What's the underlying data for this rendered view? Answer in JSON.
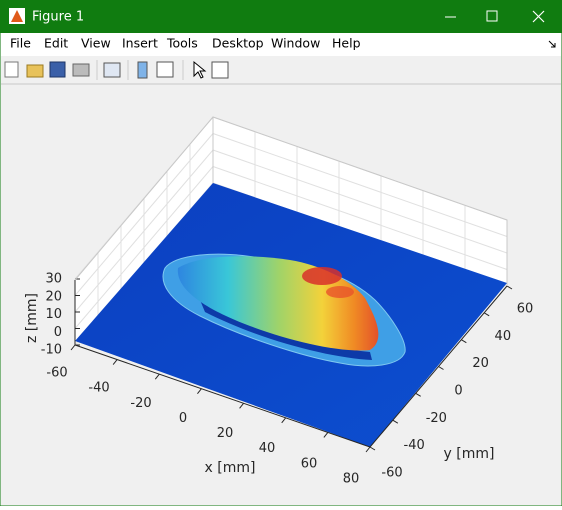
{
  "window": {
    "title": "Figure 1"
  },
  "menu": [
    "File",
    "Edit",
    "View",
    "Insert",
    "Tools",
    "Desktop",
    "Window",
    "Help"
  ],
  "axes": {
    "x_label": "x [mm]",
    "y_label": "y [mm]",
    "z_label": "z [mm]",
    "xticks": [
      -60,
      -40,
      -20,
      0,
      20,
      40,
      60,
      80
    ],
    "yticks": [
      -60,
      -40,
      -20,
      0,
      20,
      40,
      60
    ],
    "zticks": [
      -10,
      0,
      10,
      20,
      30
    ]
  }
}
